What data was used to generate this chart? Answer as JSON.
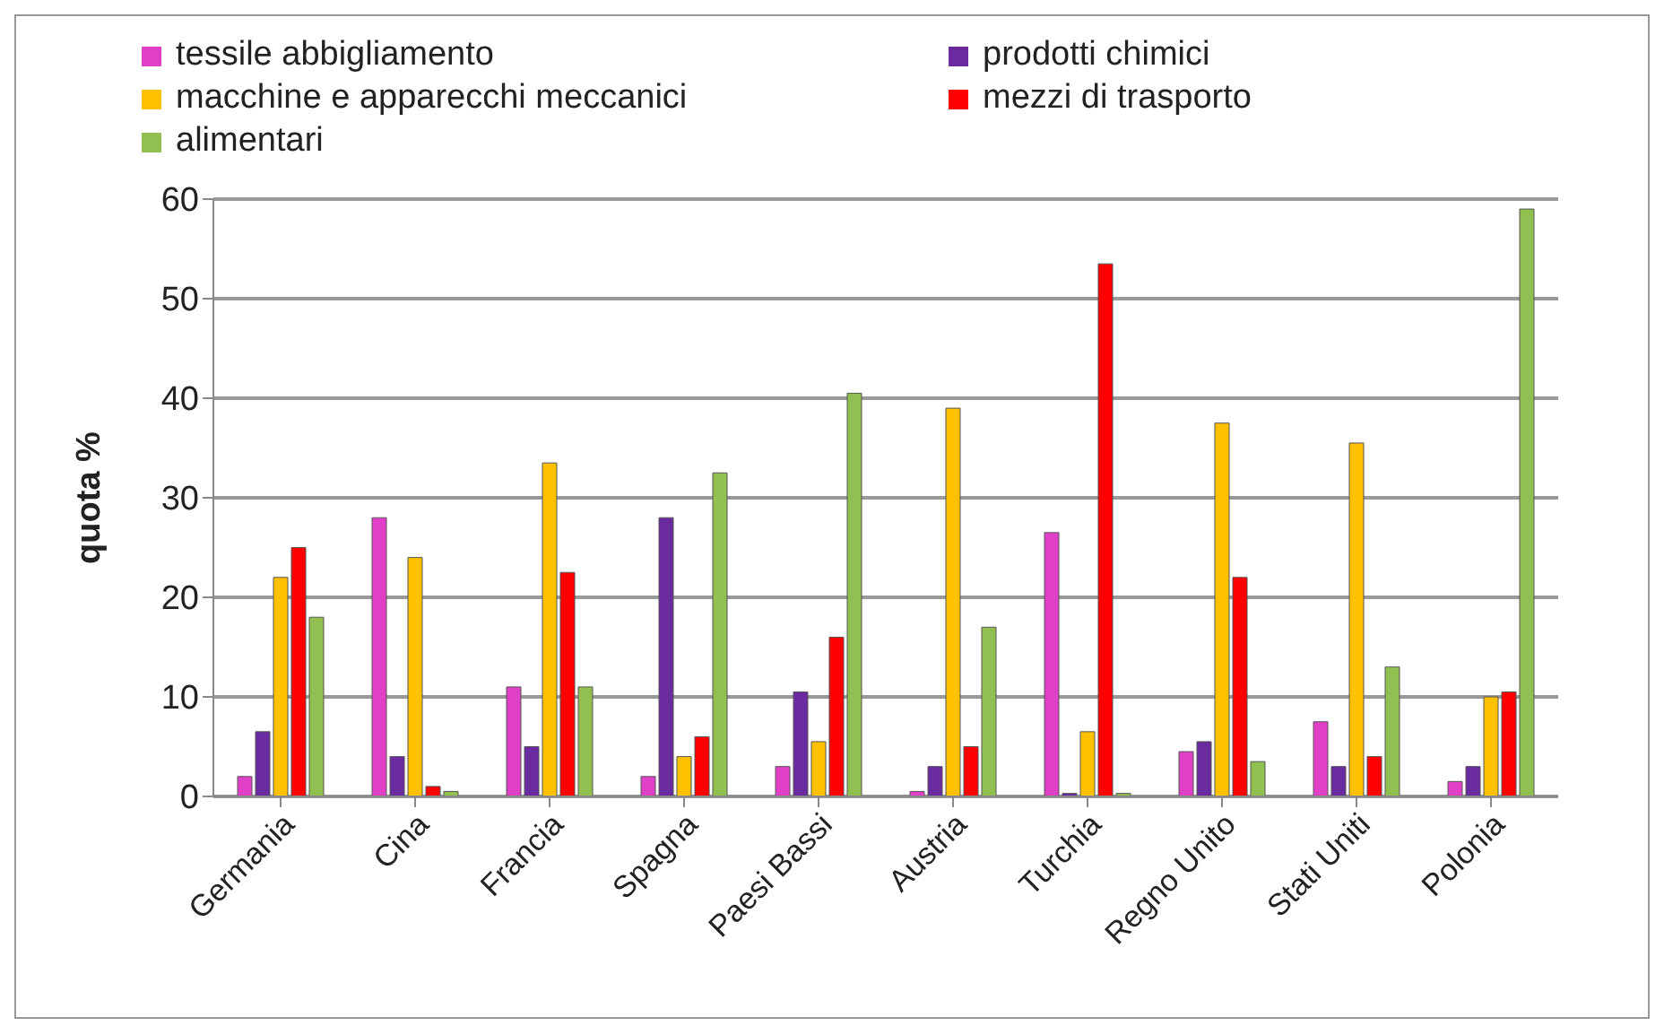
{
  "chart_data": {
    "type": "bar",
    "ylabel": "quota %",
    "categories": [
      "Germania",
      "Cina",
      "Francia",
      "Spagna",
      "Paesi Bassi",
      "Austria",
      "Turchia",
      "Regno Unito",
      "Stati Uniti",
      "Polonia"
    ],
    "series": [
      {
        "name": "tessile abbigliamento",
        "color": "#e040c8",
        "values": [
          2,
          28,
          11,
          2,
          3,
          0.5,
          26.5,
          4.5,
          7.5,
          1.5
        ]
      },
      {
        "name": "prodotti chimici",
        "color": "#6a2aa0",
        "values": [
          6.5,
          4,
          5,
          28,
          10.5,
          3,
          0.3,
          5.5,
          3,
          3
        ]
      },
      {
        "name": "macchine e apparecchi meccanici",
        "color": "#ffc000",
        "values": [
          22,
          24,
          33.5,
          4,
          5.5,
          39,
          6.5,
          37.5,
          35.5,
          10
        ]
      },
      {
        "name": "mezzi di trasporto",
        "color": "#ff0000",
        "values": [
          25,
          1,
          22.5,
          6,
          16,
          5,
          53.5,
          22,
          4,
          10.5
        ]
      },
      {
        "name": "alimentari",
        "color": "#92c050",
        "values": [
          18,
          0.5,
          11,
          32.5,
          40.5,
          17,
          0.3,
          3.5,
          13,
          59
        ]
      }
    ],
    "ylim": [
      0,
      60
    ],
    "yticks": [
      0,
      10,
      20,
      30,
      40,
      50,
      60
    ],
    "grid": "y",
    "legend": "top"
  }
}
